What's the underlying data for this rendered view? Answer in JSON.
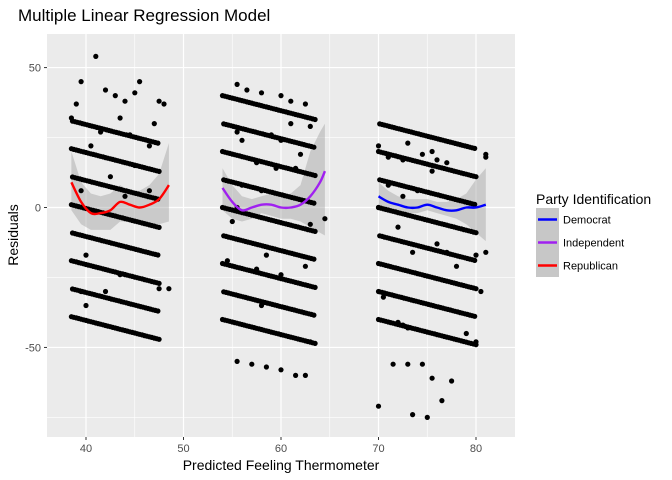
{
  "chart_data": {
    "type": "scatter",
    "title": "Multiple Linear Regression Model",
    "xlabel": "Predicted Feeling Thermometer",
    "ylabel": "Residuals",
    "xlim": [
      36,
      84
    ],
    "ylim": [
      -82,
      62
    ],
    "x_ticks": [
      40,
      50,
      60,
      70,
      80
    ],
    "y_ticks": [
      -50,
      0,
      50
    ],
    "grid": true,
    "legend": {
      "title": "Party Identification",
      "placement": "right",
      "entries": [
        {
          "label": "Democrat",
          "color": "#0000ff"
        },
        {
          "label": "Independent",
          "color": "#a020f0"
        },
        {
          "label": "Republican",
          "color": "#ff0000"
        }
      ]
    },
    "colors": {
      "panel_bg": "#ebebeb",
      "grid": "#ffffff",
      "points": "#000000",
      "ribbon": "#999999"
    },
    "points": {
      "clusters": [
        {
          "name": "Republican",
          "x_range": [
            38.5,
            47.5
          ],
          "slope": -1.0,
          "levels": [
            -39,
            -29,
            -19,
            -9,
            1,
            11,
            21,
            31
          ]
        },
        {
          "name": "Independent",
          "x_range": [
            54.0,
            63.5
          ],
          "slope": -1.0,
          "levels": [
            -40,
            -30,
            -20,
            -10,
            0,
            10,
            20,
            30,
            40
          ]
        },
        {
          "name": "Democrat",
          "x_range": [
            70.0,
            80.0
          ],
          "slope": -1.0,
          "levels": [
            -40,
            -30,
            -20,
            -10,
            0,
            10,
            20,
            30
          ]
        }
      ],
      "extra": [
        [
          41,
          54
        ],
        [
          39.5,
          45
        ],
        [
          39,
          37
        ],
        [
          38.5,
          32
        ],
        [
          45.5,
          45
        ],
        [
          45,
          41
        ],
        [
          47.5,
          38
        ],
        [
          48,
          37
        ],
        [
          42,
          42
        ],
        [
          43,
          40
        ],
        [
          44,
          38
        ],
        [
          41.5,
          27
        ],
        [
          43.5,
          32
        ],
        [
          44.5,
          26
        ],
        [
          47,
          30
        ],
        [
          46.5,
          22
        ],
        [
          45,
          15
        ],
        [
          40.5,
          22
        ],
        [
          42.5,
          11
        ],
        [
          44,
          4
        ],
        [
          46.5,
          6
        ],
        [
          39.5,
          6
        ],
        [
          40,
          -17
        ],
        [
          48.5,
          -29
        ],
        [
          39.5,
          -30
        ],
        [
          40,
          -35
        ],
        [
          43.5,
          -24
        ],
        [
          44,
          -24
        ],
        [
          42,
          -30
        ],
        [
          47.5,
          -29
        ],
        [
          55.5,
          44
        ],
        [
          56.5,
          42
        ],
        [
          58,
          41
        ],
        [
          60,
          40
        ],
        [
          61,
          38
        ],
        [
          62.5,
          37
        ],
        [
          55.5,
          27
        ],
        [
          56,
          24
        ],
        [
          59,
          26
        ],
        [
          61,
          30
        ],
        [
          63,
          29
        ],
        [
          60,
          24
        ],
        [
          62,
          19
        ],
        [
          57.5,
          16
        ],
        [
          59.5,
          14
        ],
        [
          56,
          8
        ],
        [
          58,
          6
        ],
        [
          61.5,
          14
        ],
        [
          64.5,
          -4
        ],
        [
          63,
          -6
        ],
        [
          55,
          -5
        ],
        [
          55.5,
          0
        ],
        [
          58.5,
          -17
        ],
        [
          62.5,
          -21
        ],
        [
          54.5,
          -19
        ],
        [
          57.5,
          -22
        ],
        [
          60,
          -24
        ],
        [
          58,
          -35
        ],
        [
          63,
          -48
        ],
        [
          55.5,
          -55
        ],
        [
          57,
          -56
        ],
        [
          58.5,
          -57
        ],
        [
          60,
          -58
        ],
        [
          61.5,
          -60
        ],
        [
          62.5,
          -60
        ],
        [
          70,
          22
        ],
        [
          71,
          18
        ],
        [
          73,
          23
        ],
        [
          74.5,
          19
        ],
        [
          75.5,
          20
        ],
        [
          76,
          17
        ],
        [
          77,
          16
        ],
        [
          75.5,
          13
        ],
        [
          72.5,
          17
        ],
        [
          71,
          8
        ],
        [
          72.5,
          4
        ],
        [
          74,
          6
        ],
        [
          70,
          0
        ],
        [
          72,
          -7
        ],
        [
          73.5,
          -16
        ],
        [
          76,
          -13
        ],
        [
          77,
          -16
        ],
        [
          80,
          -17
        ],
        [
          81,
          -16
        ],
        [
          78,
          -21
        ],
        [
          80.5,
          -30
        ],
        [
          70,
          -30
        ],
        [
          70.5,
          -32
        ],
        [
          72,
          -41
        ],
        [
          72.5,
          -42
        ],
        [
          73,
          -43
        ],
        [
          71.5,
          -56
        ],
        [
          73,
          -56
        ],
        [
          74.5,
          -56
        ],
        [
          75.5,
          -61
        ],
        [
          77.5,
          -62
        ],
        [
          79,
          -45
        ],
        [
          80,
          -48
        ],
        [
          70,
          -71
        ],
        [
          73.5,
          -74
        ],
        [
          75,
          -75
        ],
        [
          76.5,
          -69
        ],
        [
          81,
          19
        ],
        [
          81,
          18
        ]
      ]
    },
    "series": [
      {
        "name": "Republican",
        "color": "#ff0000",
        "x": [
          38.5,
          39.5,
          40.5,
          41.5,
          42.5,
          43.5,
          44.5,
          45.5,
          46.5,
          47.5,
          48.5
        ],
        "y": [
          9,
          2,
          -2,
          -2,
          -1,
          2,
          1,
          0,
          1,
          3,
          8
        ],
        "ci_upper": [
          20,
          9,
          5,
          4,
          5,
          8,
          6,
          6,
          8,
          12,
          23
        ],
        "ci_lower": [
          -1,
          -6,
          -8,
          -8,
          -8,
          -5,
          -5,
          -6,
          -6,
          -6,
          -5
        ]
      },
      {
        "name": "Independent",
        "color": "#a020f0",
        "x": [
          54,
          55,
          56,
          57,
          58,
          59,
          60,
          61,
          62,
          63,
          64,
          64.5
        ],
        "y": [
          7,
          2,
          -1,
          0,
          1,
          1,
          0,
          0,
          1,
          4,
          9,
          13
        ],
        "ci_upper": [
          14,
          8,
          4,
          3,
          4,
          5,
          4,
          5,
          8,
          20,
          27,
          30
        ],
        "ci_lower": [
          -1,
          -4,
          -5,
          -4,
          -2,
          -3,
          -4,
          -4,
          -5,
          -7,
          -9,
          -10
        ]
      },
      {
        "name": "Democrat",
        "color": "#0000ff",
        "x": [
          70,
          71,
          72,
          73,
          74,
          75,
          76,
          77,
          78,
          79,
          80,
          81
        ],
        "y": [
          4,
          2,
          1,
          0,
          0,
          1,
          0,
          -1,
          -1,
          0,
          0,
          1
        ],
        "ci_upper": [
          9,
          6,
          4,
          3,
          3,
          3,
          2,
          2,
          3,
          5,
          10,
          14
        ],
        "ci_lower": [
          -1,
          -2,
          -2,
          -2,
          -2,
          -1,
          -2,
          -3,
          -4,
          -6,
          -9,
          -12
        ]
      }
    ]
  }
}
